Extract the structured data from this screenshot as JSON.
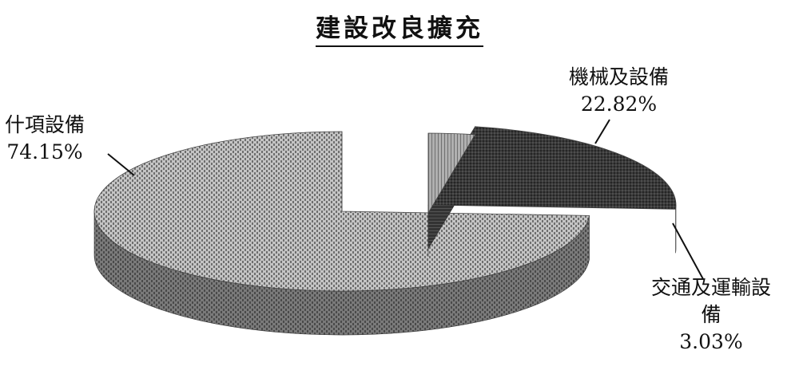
{
  "chart_data": {
    "type": "pie",
    "title": "建設改良擴充",
    "slices": [
      {
        "name": "什項設備",
        "value": 74.15,
        "pct_label": "74.15%",
        "color": "#8a8a8a"
      },
      {
        "name": "機械及設備",
        "value": 22.82,
        "pct_label": "22.82%",
        "color": "#3c3c3c"
      },
      {
        "name": "交通及運輸設",
        "name2": "備",
        "value": 3.03,
        "pct_label": "3.03%",
        "color": "#a0a0a0"
      }
    ]
  }
}
